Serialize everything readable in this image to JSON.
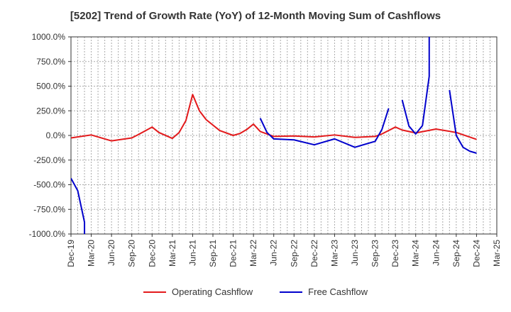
{
  "chart_data": {
    "type": "line",
    "title": "[5202]  Trend of Growth Rate (YoY) of 12-Month Moving Sum of Cashflows",
    "xlabel": "",
    "ylabel": "",
    "ylim": [
      -1000,
      1000
    ],
    "yticks": [
      -1000,
      -750,
      -500,
      -250,
      0,
      250,
      500,
      750,
      1000
    ],
    "ytick_labels": [
      "-1000.0%",
      "-750.0%",
      "-500.0%",
      "-250.0%",
      "0.0%",
      "250.0%",
      "500.0%",
      "750.0%",
      "1000.0%"
    ],
    "x_start": "2019-12",
    "x_end": "2025-03",
    "xticks": [
      "2019-12",
      "2020-03",
      "2020-06",
      "2020-09",
      "2020-12",
      "2021-03",
      "2021-06",
      "2021-09",
      "2021-12",
      "2022-03",
      "2022-06",
      "2022-09",
      "2022-12",
      "2023-03",
      "2023-06",
      "2023-09",
      "2023-12",
      "2024-03",
      "2024-06",
      "2024-09",
      "2024-12",
      "2025-03"
    ],
    "xtick_labels": [
      "Dec-19",
      "Mar-20",
      "Jun-20",
      "Sep-20",
      "Dec-20",
      "Mar-21",
      "Jun-21",
      "Sep-21",
      "Dec-21",
      "Mar-22",
      "Jun-22",
      "Sep-22",
      "Dec-22",
      "Mar-23",
      "Jun-23",
      "Sep-23",
      "Dec-23",
      "Mar-24",
      "Jun-24",
      "Sep-24",
      "Dec-24",
      "Mar-25"
    ],
    "grid": true,
    "legend_position": "bottom",
    "series": [
      {
        "name": "Operating Cashflow",
        "color": "#e31a1c",
        "points": [
          [
            "2019-12",
            -25
          ],
          [
            "2020-03",
            5
          ],
          [
            "2020-06",
            -55
          ],
          [
            "2020-09",
            -25
          ],
          [
            "2020-10",
            10
          ],
          [
            "2020-12",
            85
          ],
          [
            "2021-01",
            30
          ],
          [
            "2021-03",
            -30
          ],
          [
            "2021-04",
            30
          ],
          [
            "2021-05",
            150
          ],
          [
            "2021-06",
            415
          ],
          [
            "2021-07",
            250
          ],
          [
            "2021-08",
            160
          ],
          [
            "2021-10",
            50
          ],
          [
            "2021-12",
            0
          ],
          [
            "2022-01",
            20
          ],
          [
            "2022-02",
            60
          ],
          [
            "2022-03",
            115
          ],
          [
            "2022-04",
            40
          ],
          [
            "2022-06",
            -10
          ],
          [
            "2022-09",
            -5
          ],
          [
            "2022-12",
            -15
          ],
          [
            "2023-03",
            5
          ],
          [
            "2023-06",
            -20
          ],
          [
            "2023-09",
            -10
          ],
          [
            "2023-10",
            15
          ],
          [
            "2023-12",
            85
          ],
          [
            "2024-01",
            55
          ],
          [
            "2024-03",
            25
          ],
          [
            "2024-06",
            65
          ],
          [
            "2024-09",
            30
          ],
          [
            "2024-12",
            -40
          ]
        ]
      },
      {
        "name": "Free Cashflow",
        "color": "#0000cc",
        "segments": [
          [
            [
              "2019-12",
              -435
            ],
            [
              "2020-01",
              -560
            ],
            [
              "2020-02",
              -880
            ],
            [
              "2020-02",
              -1000
            ]
          ],
          [
            [
              "2022-04",
              175
            ],
            [
              "2022-05",
              30
            ],
            [
              "2022-06",
              -35
            ],
            [
              "2022-09",
              -45
            ],
            [
              "2022-12",
              -95
            ],
            [
              "2023-03",
              -35
            ],
            [
              "2023-06",
              -120
            ],
            [
              "2023-09",
              -60
            ],
            [
              "2023-10",
              60
            ],
            [
              "2023-11",
              275
            ]
          ],
          [
            [
              "2024-01",
              360
            ],
            [
              "2024-02",
              95
            ],
            [
              "2024-03",
              15
            ],
            [
              "2024-04",
              100
            ],
            [
              "2024-05",
              600
            ],
            [
              "2024-05",
              1000
            ]
          ],
          [
            [
              "2024-08",
              460
            ],
            [
              "2024-09",
              0
            ],
            [
              "2024-10",
              -120
            ],
            [
              "2024-11",
              -160
            ],
            [
              "2024-12",
              -180
            ]
          ]
        ]
      }
    ]
  }
}
